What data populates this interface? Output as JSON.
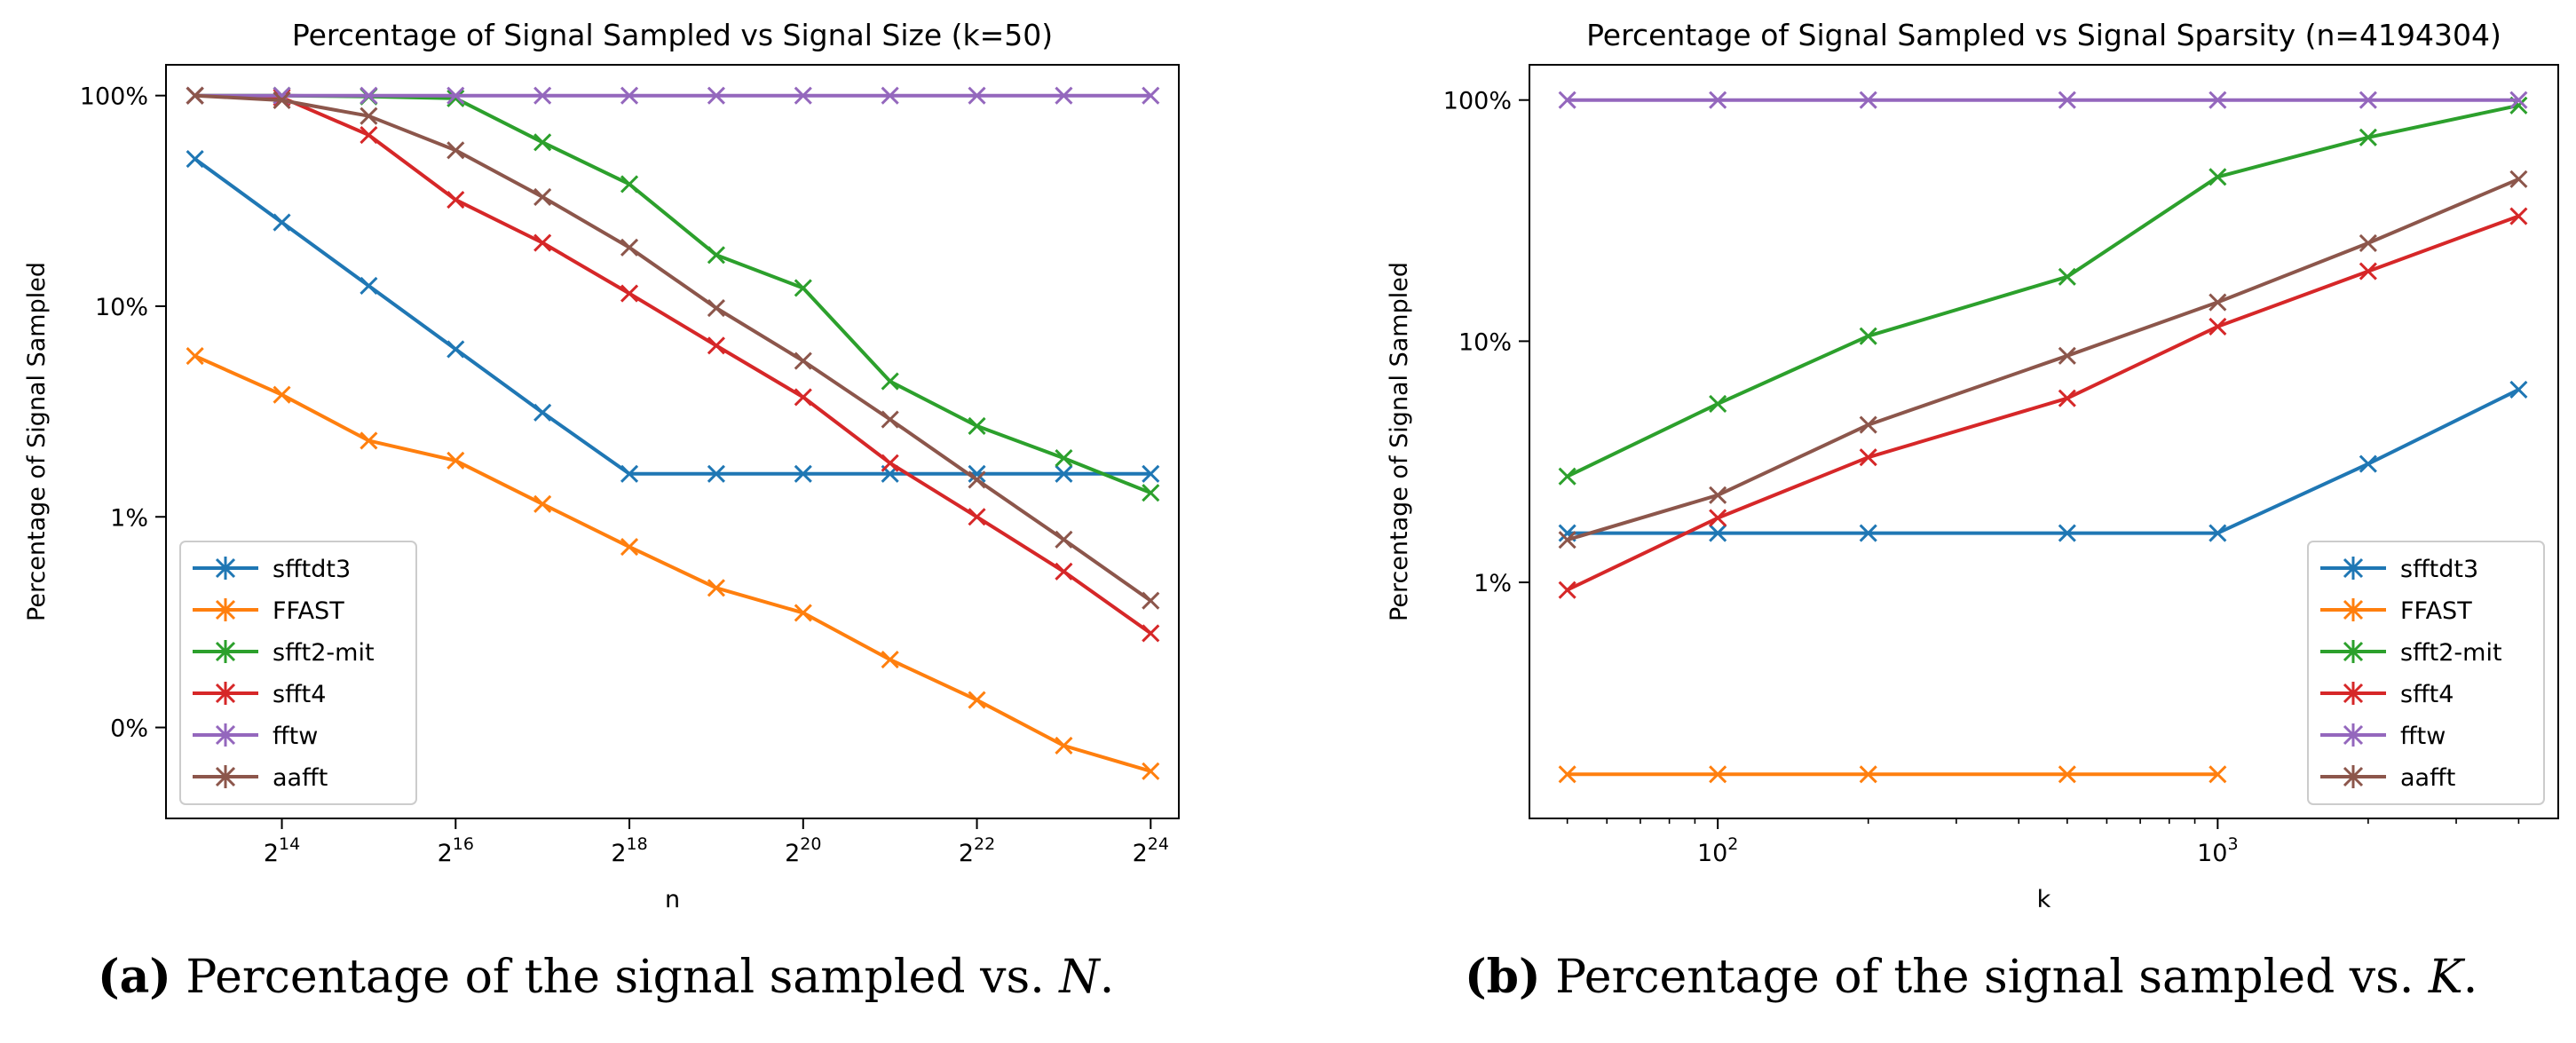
{
  "chart_data": [
    {
      "type": "line",
      "title": "Percentage of Signal Sampled vs Signal Size (k=50)",
      "xlabel": "n",
      "ylabel": "Percentage of Signal Sampled",
      "xscale": "log2",
      "yscale": "log",
      "x": [
        8192,
        16384,
        32768,
        65536,
        131072,
        262144,
        524288,
        1048576,
        2097152,
        4194304,
        8388608,
        16777216
      ],
      "xticks": [
        {
          "base": "2",
          "exp": "14",
          "value": 16384
        },
        {
          "base": "2",
          "exp": "16",
          "value": 65536
        },
        {
          "base": "2",
          "exp": "18",
          "value": 262144
        },
        {
          "base": "2",
          "exp": "20",
          "value": 1048576
        },
        {
          "base": "2",
          "exp": "22",
          "value": 4194304
        },
        {
          "base": "2",
          "exp": "24",
          "value": 16777216
        }
      ],
      "yticks": [
        {
          "label": "100%",
          "value": 100
        },
        {
          "label": "10%",
          "value": 10
        },
        {
          "label": "1%",
          "value": 1
        },
        {
          "label": "0%",
          "value": 0.1
        }
      ],
      "xlim": [
        6500,
        21000000
      ],
      "ylim": [
        0.037,
        140
      ],
      "legend": "bottom-left",
      "grid": false,
      "series": [
        {
          "name": "sfftdt3",
          "color": "#1f77b4",
          "y": [
            50,
            25,
            12.5,
            6.25,
            3.125,
            1.6,
            1.6,
            1.6,
            1.6,
            1.6,
            1.6,
            1.6
          ]
        },
        {
          "name": "FFAST",
          "color": "#ff7f0e",
          "y": [
            5.8,
            3.8,
            2.3,
            1.85,
            1.15,
            0.72,
            0.46,
            0.35,
            0.21,
            0.135,
            0.082,
            0.062
          ]
        },
        {
          "name": "sfft2-mit",
          "color": "#2ca02c",
          "y": [
            100,
            100,
            99,
            97,
            60,
            38,
            17.5,
            12.2,
            4.4,
            2.7,
            1.9,
            1.3
          ]
        },
        {
          "name": "sfft4",
          "color": "#d62728",
          "y": [
            100,
            98,
            65,
            32,
            20,
            11.5,
            6.5,
            3.7,
            1.8,
            1.0,
            0.55,
            0.28
          ]
        },
        {
          "name": "fftw",
          "color": "#9467bd",
          "y": [
            100,
            100,
            100,
            100,
            100,
            100,
            100,
            100,
            100,
            100,
            100,
            100
          ]
        },
        {
          "name": "aafft",
          "color": "#8c564b",
          "y": [
            100,
            95,
            80,
            55,
            33,
            19,
            9.8,
            5.5,
            2.9,
            1.5,
            0.78,
            0.4
          ]
        }
      ]
    },
    {
      "type": "line",
      "title": "Percentage of Signal Sampled vs Signal Sparsity (n=4194304)",
      "xlabel": "k",
      "ylabel": "Percentage of Signal Sampled",
      "xscale": "log",
      "yscale": "log",
      "x": [
        50,
        100,
        200,
        500,
        1000,
        2000,
        4000
      ],
      "xticks": [
        {
          "base": "10",
          "exp": "2",
          "value": 100
        },
        {
          "base": "10",
          "exp": "3",
          "value": 1000
        }
      ],
      "yticks": [
        {
          "label": "100%",
          "value": 100
        },
        {
          "label": "10%",
          "value": 10
        },
        {
          "label": "1%",
          "value": 1
        }
      ],
      "xlim": [
        42,
        4800
      ],
      "ylim": [
        0.105,
        140
      ],
      "legend": "bottom-right",
      "grid": false,
      "series": [
        {
          "name": "sfftdt3",
          "color": "#1f77b4",
          "y": [
            1.6,
            1.6,
            1.6,
            1.6,
            1.6,
            3.1,
            6.3
          ]
        },
        {
          "name": "FFAST",
          "color": "#ff7f0e",
          "y": [
            0.16,
            0.16,
            0.16,
            0.16,
            0.16,
            null,
            null
          ]
        },
        {
          "name": "sfft2-mit",
          "color": "#2ca02c",
          "y": [
            2.75,
            5.5,
            10.5,
            18.5,
            48,
            70,
            95
          ]
        },
        {
          "name": "sfft4",
          "color": "#d62728",
          "y": [
            0.93,
            1.85,
            3.3,
            5.8,
            11.5,
            19.5,
            33
          ]
        },
        {
          "name": "fftw",
          "color": "#9467bd",
          "y": [
            100,
            100,
            100,
            100,
            100,
            100,
            100
          ]
        },
        {
          "name": "aafft",
          "color": "#8c564b",
          "y": [
            1.5,
            2.3,
            4.5,
            8.7,
            14.5,
            25.5,
            47
          ]
        }
      ]
    }
  ],
  "captions": [
    {
      "letter": "(a)",
      "text": " Percentage of the signal sampled vs. ",
      "var": "N",
      "end": "."
    },
    {
      "letter": "(b)",
      "text": " Percentage of the signal sampled vs. ",
      "var": "K",
      "end": "."
    }
  ]
}
